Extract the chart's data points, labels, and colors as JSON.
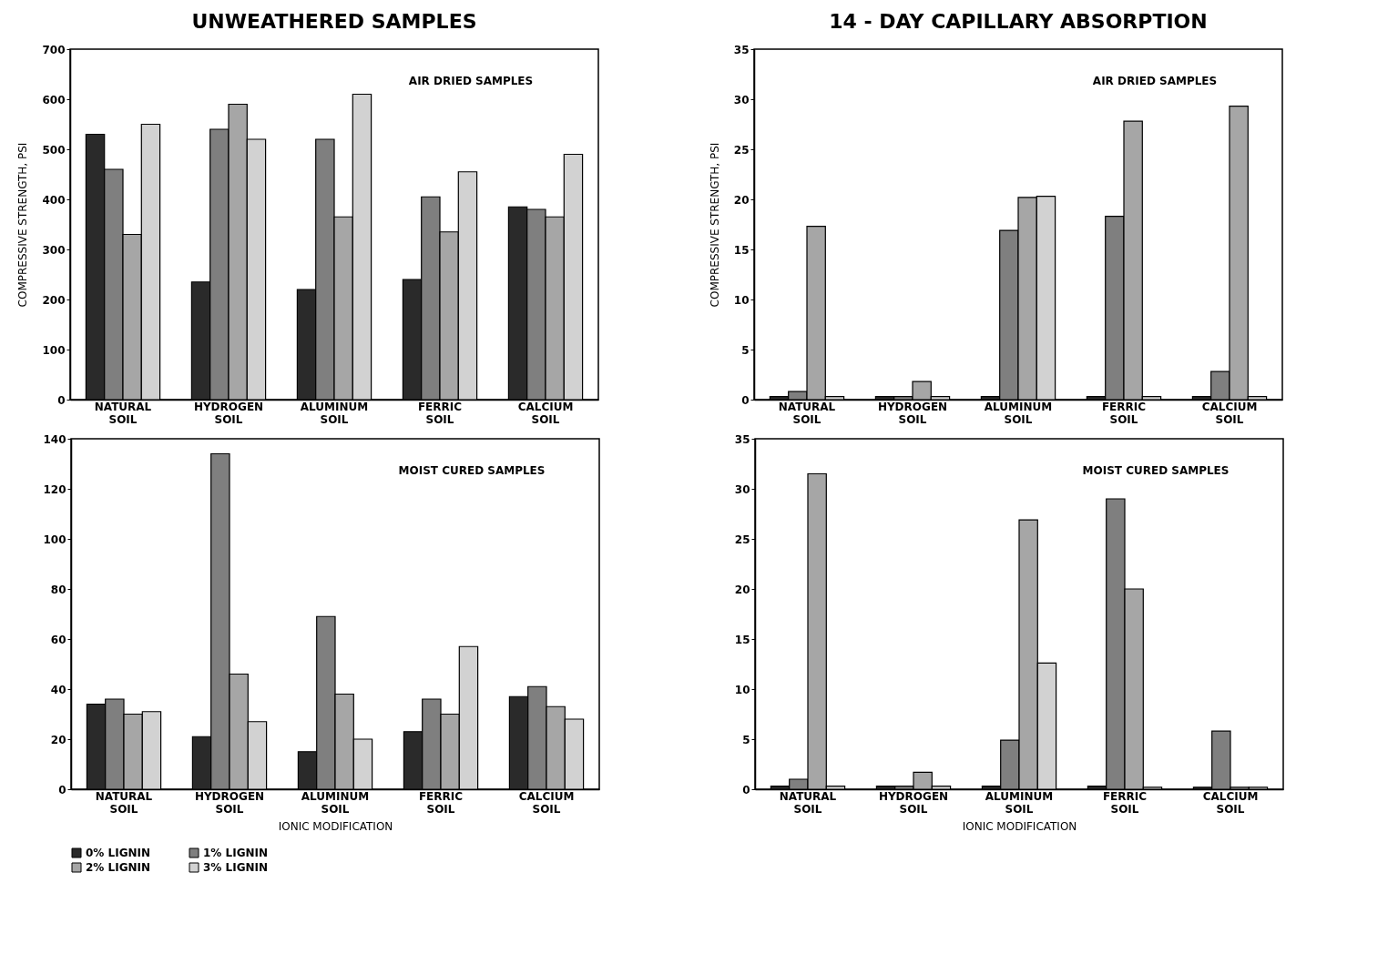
{
  "chart_data": [
    {
      "type": "bar",
      "title": "UNWEATHERED SAMPLES",
      "ylabel": "COMPRESSIVE STRENGTH, PSI",
      "annotations": [
        "AIR DRIED SAMPLES"
      ],
      "categories": [
        "NATURAL SOIL",
        "HYDROGEN SOIL",
        "ALUMINUM SOIL",
        "FERRIC SOIL",
        "CALCIUM SOIL"
      ],
      "ylim": [
        0,
        700
      ],
      "yticks": [
        0,
        100,
        200,
        300,
        400,
        500,
        600,
        700
      ],
      "series": [
        {
          "color": "#2a2a2a",
          "values": [
            530,
            235,
            220,
            240,
            385
          ]
        },
        {
          "color": "#7f7f7f",
          "values": [
            460,
            540,
            520,
            405,
            380
          ]
        },
        {
          "color": "#a6a6a6",
          "values": [
            330,
            590,
            365,
            335,
            365
          ]
        },
        {
          "color": "#d2d2d2",
          "values": [
            550,
            520,
            610,
            455,
            490
          ]
        }
      ]
    },
    {
      "type": "bar",
      "xlabel": "IONIC MODIFICATION",
      "annotations": [
        "MOIST CURED SAMPLES"
      ],
      "categories": [
        "NATURAL SOIL",
        "HYDROGEN SOIL",
        "ALUMINUM SOIL",
        "FERRIC SOIL",
        "CALCIUM SOIL"
      ],
      "ylim": [
        0,
        140
      ],
      "yticks": [
        0,
        20,
        40,
        60,
        80,
        100,
        120,
        140
      ],
      "legend": "bottom",
      "series": [
        {
          "name": "0% LIGNIN",
          "color": "#2a2a2a",
          "values": [
            34,
            21,
            15,
            23,
            37
          ]
        },
        {
          "name": "1% LIGNIN",
          "color": "#7f7f7f",
          "values": [
            36,
            134,
            69,
            36,
            41
          ]
        },
        {
          "name": "2% LIGNIN",
          "color": "#a6a6a6",
          "values": [
            30,
            46,
            38,
            30,
            33
          ]
        },
        {
          "name": "3% LIGNIN",
          "color": "#d2d2d2",
          "values": [
            31,
            27,
            20,
            57,
            28
          ]
        }
      ]
    },
    {
      "type": "bar",
      "title": "14 - DAY CAPILLARY ABSORPTION",
      "ylabel": "COMPRESSIVE STRENGTH, PSI",
      "annotations": [
        "AIR DRIED SAMPLES"
      ],
      "categories": [
        "NATURAL SOIL",
        "HYDROGEN SOIL",
        "ALUMINUM SOIL",
        "FERRIC SOIL",
        "CALCIUM SOIL"
      ],
      "ylim": [
        0,
        35
      ],
      "yticks": [
        0,
        5,
        10,
        15,
        20,
        25,
        30,
        35
      ],
      "series": [
        {
          "color": "#2a2a2a",
          "values": [
            0.3,
            0.3,
            0.3,
            0.3,
            0.3
          ]
        },
        {
          "color": "#7f7f7f",
          "values": [
            0.8,
            0.3,
            16.9,
            18.3,
            2.8
          ]
        },
        {
          "color": "#a6a6a6",
          "values": [
            17.3,
            1.8,
            20.2,
            27.8,
            29.3
          ]
        },
        {
          "color": "#d2d2d2",
          "values": [
            0.3,
            0.3,
            20.3,
            0.3,
            0.3
          ]
        }
      ]
    },
    {
      "type": "bar",
      "xlabel": "IONIC MODIFICATION",
      "annotations": [
        "MOIST CURED SAMPLES"
      ],
      "categories": [
        "NATURAL SOIL",
        "HYDROGEN SOIL",
        "ALUMINUM SOIL",
        "FERRIC SOIL",
        "CALCIUM SOIL"
      ],
      "ylim": [
        0,
        35
      ],
      "yticks": [
        0,
        5,
        10,
        15,
        20,
        25,
        30,
        35
      ],
      "series": [
        {
          "color": "#2a2a2a",
          "values": [
            0.3,
            0.3,
            0.3,
            0.3,
            0.2
          ]
        },
        {
          "color": "#7f7f7f",
          "values": [
            1.0,
            0.3,
            4.9,
            29.0,
            5.8
          ]
        },
        {
          "color": "#a6a6a6",
          "values": [
            31.5,
            1.7,
            26.9,
            20.0,
            0.2
          ]
        },
        {
          "color": "#d2d2d2",
          "values": [
            0.3,
            0.3,
            12.6,
            0.2,
            0.2
          ]
        }
      ]
    }
  ]
}
